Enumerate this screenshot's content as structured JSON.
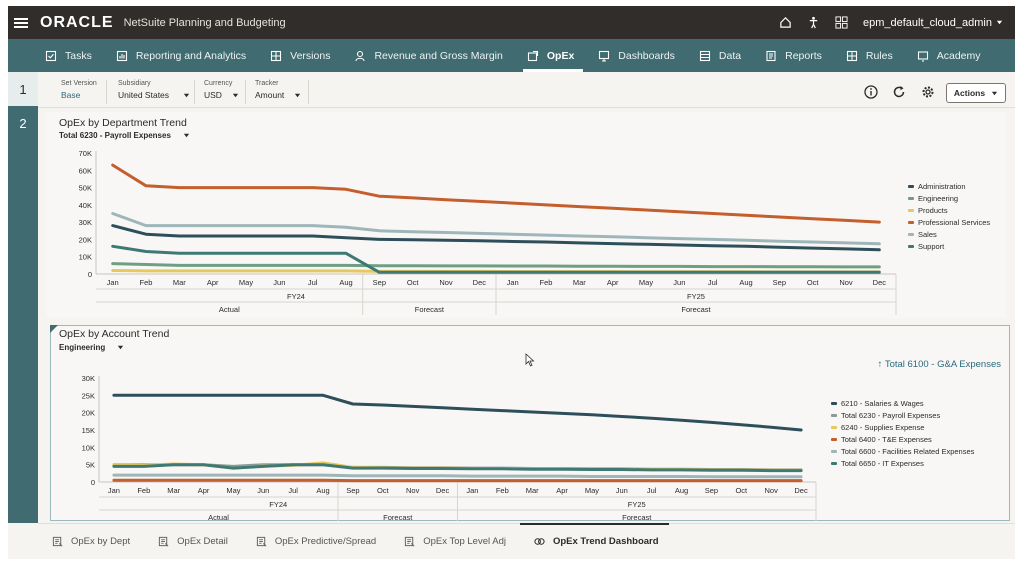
{
  "header": {
    "brand": "ORACLE",
    "app_title": "NetSuite Planning and Budgeting",
    "user": "epm_default_cloud_admin"
  },
  "nav": {
    "items": [
      {
        "label": "Tasks",
        "icon": "tasks-icon"
      },
      {
        "label": "Reporting and Analytics",
        "icon": "reports-icon"
      },
      {
        "label": "Versions",
        "icon": "versions-icon"
      },
      {
        "label": "Revenue and Gross Margin",
        "icon": "revenue-icon"
      },
      {
        "label": "OpEx",
        "icon": "opex-icon",
        "active": true
      },
      {
        "label": "Dashboards",
        "icon": "dashboard-icon"
      },
      {
        "label": "Data",
        "icon": "data-icon"
      },
      {
        "label": "Reports",
        "icon": "report-icon"
      },
      {
        "label": "Rules",
        "icon": "rules-icon"
      },
      {
        "label": "Academy",
        "icon": "academy-icon"
      }
    ]
  },
  "rail": {
    "items": [
      "1",
      "2"
    ]
  },
  "pov": {
    "set_version": {
      "label": "Set Version",
      "value": "Base"
    },
    "subsidiary": {
      "label": "Subsidiary",
      "value": "United States"
    },
    "currency": {
      "label": "Currency",
      "value": "USD"
    },
    "tracker": {
      "label": "Tracker",
      "value": "Amount"
    },
    "actions_label": "Actions"
  },
  "chart1_meta": {
    "title": "OpEx by Department Trend",
    "selector": "Total 6230 - Payroll Expenses"
  },
  "chart2_meta": {
    "title": "OpEx by Account Trend",
    "selector": "Engineering",
    "link": "Total 6100 - G&A Expenses"
  },
  "chart_data": [
    {
      "type": "line",
      "title": "OpEx by Department Trend",
      "categories": [
        "Jan",
        "Feb",
        "Mar",
        "Apr",
        "May",
        "Jun",
        "Jul",
        "Aug",
        "Sep",
        "Oct",
        "Nov",
        "Dec",
        "Jan",
        "Feb",
        "Mar",
        "Apr",
        "May",
        "Jun",
        "Jul",
        "Aug",
        "Sep",
        "Oct",
        "Nov",
        "Dec"
      ],
      "year_groups": [
        {
          "label": "FY24",
          "span": [
            0,
            11
          ]
        },
        {
          "label": "FY25",
          "span": [
            12,
            23
          ]
        }
      ],
      "scenario_groups": [
        {
          "label": "Actual",
          "span": [
            0,
            7
          ]
        },
        {
          "label": "Forecast",
          "span": [
            8,
            11
          ]
        },
        {
          "label": "Forecast",
          "span": [
            12,
            23
          ]
        }
      ],
      "y_ticks": [
        "0",
        "10K",
        "20K",
        "30K",
        "40K",
        "50K",
        "60K",
        "70K"
      ],
      "ylim": [
        0,
        70000
      ],
      "grid": false,
      "legend_position": "right",
      "series": [
        {
          "name": "Administration",
          "color": "#2e4f5a",
          "values": [
            28000,
            23000,
            22000,
            22000,
            22000,
            22000,
            22000,
            21000,
            20000,
            19800,
            19500,
            19200,
            18800,
            18500,
            18000,
            17600,
            17200,
            16800,
            16400,
            16000,
            15500,
            15000,
            14500,
            14000
          ]
        },
        {
          "name": "Engineering",
          "color": "#6f9e83",
          "values": [
            6000,
            5500,
            5000,
            5000,
            5000,
            5000,
            5000,
            5000,
            4800,
            4800,
            4700,
            4700,
            4600,
            4600,
            4500,
            4500,
            4400,
            4400,
            4300,
            4300,
            4200,
            4200,
            4100,
            4100
          ]
        },
        {
          "name": "Products",
          "color": "#e6c95e",
          "values": [
            2000,
            1800,
            1800,
            1800,
            1800,
            1800,
            1800,
            1800,
            1500,
            1500,
            1500,
            1500,
            1400,
            1400,
            1400,
            1400,
            1300,
            1300,
            1300,
            1300,
            1200,
            1200,
            1200,
            1200
          ]
        },
        {
          "name": "Professional Services",
          "color": "#c45e2c",
          "values": [
            63000,
            51000,
            50000,
            50000,
            50000,
            50000,
            50000,
            49000,
            45000,
            44000,
            43000,
            42000,
            41000,
            40000,
            39000,
            38000,
            37000,
            36000,
            35000,
            34000,
            33000,
            32000,
            31000,
            30000
          ]
        },
        {
          "name": "Sales",
          "color": "#9eb6b9",
          "values": [
            35000,
            28000,
            28000,
            28000,
            28000,
            28000,
            28000,
            27000,
            25000,
            24500,
            24000,
            23500,
            23000,
            22500,
            22000,
            21500,
            21000,
            20500,
            20000,
            19500,
            19000,
            18500,
            18000,
            17500
          ]
        },
        {
          "name": "Support",
          "color": "#3e7a73",
          "values": [
            16000,
            13000,
            12000,
            12000,
            12000,
            12000,
            12000,
            12000,
            1000,
            1000,
            1000,
            1000,
            1000,
            1000,
            1000,
            1000,
            1000,
            1000,
            1000,
            1000,
            1000,
            1000,
            1000,
            1000
          ]
        }
      ]
    },
    {
      "type": "line",
      "title": "OpEx by Account Trend",
      "categories": [
        "Jan",
        "Feb",
        "Mar",
        "Apr",
        "May",
        "Jun",
        "Jul",
        "Aug",
        "Sep",
        "Oct",
        "Nov",
        "Dec",
        "Jan",
        "Feb",
        "Mar",
        "Apr",
        "May",
        "Jun",
        "Jul",
        "Aug",
        "Sep",
        "Oct",
        "Nov",
        "Dec"
      ],
      "year_groups": [
        {
          "label": "FY24",
          "span": [
            0,
            11
          ]
        },
        {
          "label": "FY25",
          "span": [
            12,
            23
          ]
        }
      ],
      "scenario_groups": [
        {
          "label": "Actual",
          "span": [
            0,
            7
          ]
        },
        {
          "label": "Forecast",
          "span": [
            8,
            11
          ]
        },
        {
          "label": "Forecast",
          "span": [
            12,
            23
          ]
        }
      ],
      "y_ticks": [
        "0",
        "5K",
        "10K",
        "15K",
        "20K",
        "25K",
        "30K"
      ],
      "ylim": [
        0,
        30000
      ],
      "grid": false,
      "legend_position": "right",
      "series": [
        {
          "name": "6210 - Salaries & Wages",
          "color": "#2e4f5a",
          "values": [
            25000,
            25000,
            25000,
            25000,
            25000,
            25000,
            25000,
            25000,
            22500,
            22200,
            21800,
            21400,
            21000,
            20600,
            20200,
            19800,
            19400,
            18900,
            18400,
            17800,
            17200,
            16500,
            15800,
            15000
          ]
        },
        {
          "name": "Total 6230 - Payroll Expenses",
          "color": "#8a9a9a",
          "values": [
            5000,
            5000,
            5000,
            5000,
            4500,
            5000,
            5000,
            5000,
            4200,
            4200,
            4100,
            4100,
            4000,
            4000,
            3900,
            3900,
            3800,
            3800,
            3700,
            3700,
            3600,
            3600,
            3500,
            3500
          ]
        },
        {
          "name": "6240 - Supplies Expense",
          "color": "#e6c95e",
          "values": [
            5000,
            4800,
            5200,
            5000,
            4000,
            4600,
            4800,
            5500,
            4200,
            4100,
            4000,
            4000,
            3900,
            3900,
            3800,
            3800,
            3700,
            3700,
            3600,
            3600,
            3500,
            3500,
            3400,
            3400
          ]
        },
        {
          "name": "Total 6400 - T&E Expenses",
          "color": "#c45e2c",
          "values": [
            500,
            500,
            500,
            500,
            500,
            500,
            500,
            500,
            400,
            400,
            400,
            400,
            400,
            400,
            400,
            400,
            400,
            400,
            400,
            400,
            400,
            400,
            400,
            400
          ]
        },
        {
          "name": "Total 6600 - Facilities Related Expenses",
          "color": "#9eb6b9",
          "values": [
            2000,
            2000,
            2000,
            2000,
            2000,
            2000,
            2000,
            2000,
            1800,
            1800,
            1800,
            1800,
            1700,
            1700,
            1700,
            1700,
            1600,
            1600,
            1600,
            1600,
            1500,
            1500,
            1500,
            1500
          ]
        },
        {
          "name": "Total 6650 - IT Expenses",
          "color": "#3e7a73",
          "values": [
            4500,
            4500,
            5000,
            5000,
            4000,
            4500,
            5000,
            5000,
            4000,
            4000,
            3900,
            3900,
            3800,
            3800,
            3700,
            3700,
            3600,
            3600,
            3500,
            3500,
            3400,
            3400,
            3300,
            3300
          ]
        }
      ]
    }
  ],
  "bottom_tabs": [
    {
      "label": "OpEx by Dept"
    },
    {
      "label": "OpEx Detail"
    },
    {
      "label": "OpEx Predictive/Spread"
    },
    {
      "label": "OpEx Top Level Adj"
    },
    {
      "label": "OpEx Trend Dashboard",
      "active": true
    }
  ]
}
